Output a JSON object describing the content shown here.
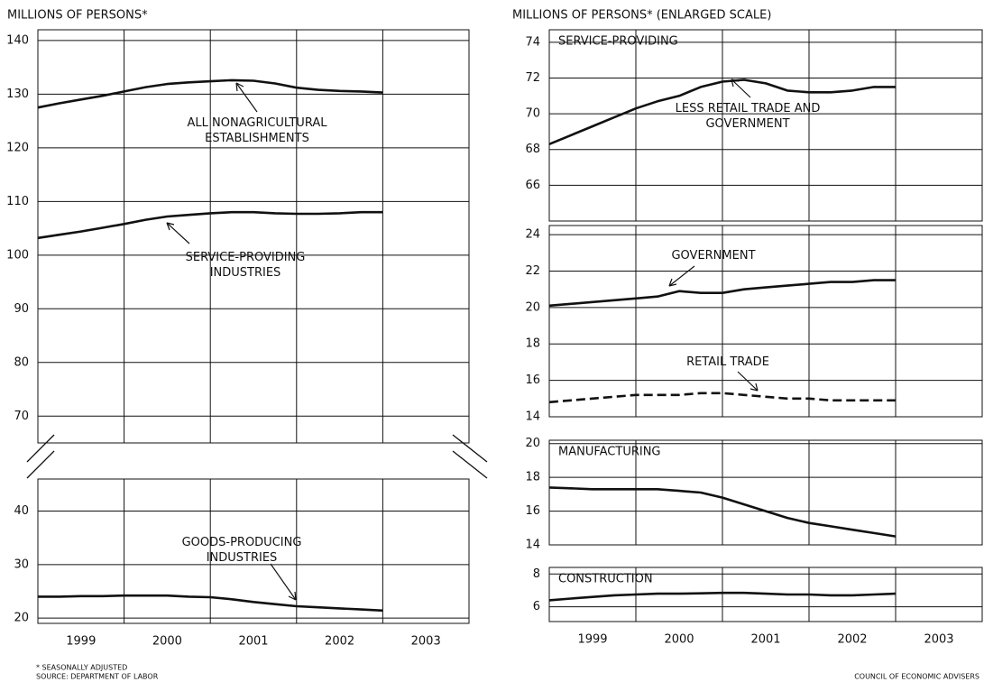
{
  "headers": [
    "MILLIONS OF PERSONS*",
    "MILLIONS OF PERSONS*  (ENLARGED SCALE)"
  ],
  "notes": [
    "* SEASONALLY ADJUSTED",
    "SOURCE: DEPARTMENT OF LABOR",
    "COUNCIL OF ECONOMIC ADVISERS"
  ],
  "chart_data": [
    {
      "type": "line",
      "xlim": [
        1999,
        2004
      ],
      "xticks": [
        2000,
        2001,
        2002,
        2003
      ],
      "ylim": [
        65,
        142
      ],
      "yticks": [
        70,
        80,
        90,
        100,
        110,
        120,
        130,
        140
      ],
      "grid": true,
      "x": [
        1999,
        1999.25,
        1999.5,
        1999.75,
        2000,
        2000.25,
        2000.5,
        2000.75,
        2001,
        2001.25,
        2001.5,
        2001.75,
        2002,
        2002.25,
        2002.5,
        2002.75,
        2003
      ],
      "series": [
        {
          "name": "ALL NONAGRICULTURAL ESTABLISHMENTS",
          "color": "#111111",
          "values": [
            127.5,
            128.3,
            129.0,
            129.7,
            130.5,
            131.3,
            131.9,
            132.2,
            132.4,
            132.6,
            132.5,
            132.0,
            131.2,
            130.8,
            130.6,
            130.5,
            130.3
          ]
        },
        {
          "name": "SERVICE-PROVIDING INDUSTRIES",
          "color": "#111111",
          "values": [
            103.2,
            103.8,
            104.4,
            105.1,
            105.8,
            106.6,
            107.2,
            107.5,
            107.8,
            108.0,
            108.0,
            107.8,
            107.7,
            107.7,
            107.8,
            108.0,
            108.0
          ]
        }
      ]
    },
    {
      "type": "line",
      "xlim": [
        1999,
        2004
      ],
      "xticks": [
        2000,
        2001,
        2002,
        2003
      ],
      "ylim": [
        19,
        46
      ],
      "yticks": [
        20,
        30,
        40
      ],
      "grid": true,
      "categories": [
        "1999",
        "2000",
        "2001",
        "2002",
        "2003"
      ],
      "x": [
        1999,
        1999.25,
        1999.5,
        1999.75,
        2000,
        2000.25,
        2000.5,
        2000.75,
        2001,
        2001.25,
        2001.5,
        2001.75,
        2002,
        2002.25,
        2002.5,
        2002.75,
        2003
      ],
      "series": [
        {
          "name": "GOODS-PRODUCING INDUSTRIES",
          "color": "#111111",
          "values": [
            24.0,
            24.0,
            24.1,
            24.1,
            24.2,
            24.2,
            24.2,
            24.0,
            23.9,
            23.5,
            23.0,
            22.6,
            22.2,
            22.0,
            21.8,
            21.6,
            21.4
          ]
        }
      ]
    },
    {
      "type": "line",
      "title": "SERVICE-PROVIDING",
      "xlim": [
        1999,
        2004
      ],
      "xticks": [
        2000,
        2001,
        2002,
        2003
      ],
      "ylim": [
        64,
        74.7
      ],
      "yticks": [
        66,
        68,
        70,
        72,
        74
      ],
      "grid": true,
      "x": [
        1999,
        1999.25,
        1999.5,
        1999.75,
        2000,
        2000.25,
        2000.5,
        2000.75,
        2001,
        2001.25,
        2001.5,
        2001.75,
        2002,
        2002.25,
        2002.5,
        2002.75,
        2003
      ],
      "series": [
        {
          "name": "LESS RETAIL TRADE AND GOVERNMENT",
          "color": "#111111",
          "values": [
            68.3,
            68.8,
            69.3,
            69.8,
            70.3,
            70.7,
            71.0,
            71.5,
            71.8,
            71.9,
            71.7,
            71.3,
            71.2,
            71.2,
            71.3,
            71.5,
            71.5
          ]
        }
      ]
    },
    {
      "type": "line",
      "xlim": [
        1999,
        2004
      ],
      "xticks": [
        2000,
        2001,
        2002,
        2003
      ],
      "ylim": [
        14,
        24.5
      ],
      "yticks": [
        14,
        16,
        18,
        20,
        22,
        24
      ],
      "grid": true,
      "x": [
        1999,
        1999.25,
        1999.5,
        1999.75,
        2000,
        2000.25,
        2000.5,
        2000.75,
        2001,
        2001.25,
        2001.5,
        2001.75,
        2002,
        2002.25,
        2002.5,
        2002.75,
        2003
      ],
      "series": [
        {
          "name": "GOVERNMENT",
          "color": "#111111",
          "values": [
            20.1,
            20.2,
            20.3,
            20.4,
            20.5,
            20.6,
            20.9,
            20.8,
            20.8,
            21.0,
            21.1,
            21.2,
            21.3,
            21.4,
            21.4,
            21.5,
            21.5
          ]
        },
        {
          "name": "RETAIL TRADE",
          "color": "#111111",
          "dashed": true,
          "values": [
            14.8,
            14.9,
            15.0,
            15.1,
            15.2,
            15.2,
            15.2,
            15.3,
            15.3,
            15.2,
            15.1,
            15.0,
            15.0,
            14.9,
            14.9,
            14.9,
            14.9
          ]
        }
      ]
    },
    {
      "type": "line",
      "title": "MANUFACTURING",
      "xlim": [
        1999,
        2004
      ],
      "xticks": [
        2000,
        2001,
        2002,
        2003
      ],
      "ylim": [
        14,
        20.2
      ],
      "yticks": [
        14,
        16,
        18,
        20
      ],
      "grid": true,
      "x": [
        1999,
        1999.25,
        1999.5,
        1999.75,
        2000,
        2000.25,
        2000.5,
        2000.75,
        2001,
        2001.25,
        2001.5,
        2001.75,
        2002,
        2002.25,
        2002.5,
        2002.75,
        2003
      ],
      "series": [
        {
          "color": "#111111",
          "values": [
            17.4,
            17.35,
            17.3,
            17.3,
            17.3,
            17.3,
            17.2,
            17.1,
            16.8,
            16.4,
            16.0,
            15.6,
            15.3,
            15.1,
            14.9,
            14.7,
            14.5
          ]
        }
      ]
    },
    {
      "type": "line",
      "title": "CONSTRUCTION",
      "xlim": [
        1999,
        2004
      ],
      "xticks": [
        2000,
        2001,
        2002,
        2003
      ],
      "ylim": [
        5.1,
        8.4
      ],
      "yticks": [
        6,
        8
      ],
      "grid": true,
      "categories": [
        "1999",
        "2000",
        "2001",
        "2002",
        "2003"
      ],
      "x": [
        1999,
        1999.25,
        1999.5,
        1999.75,
        2000,
        2000.25,
        2000.5,
        2000.75,
        2001,
        2001.25,
        2001.5,
        2001.75,
        2002,
        2002.25,
        2002.5,
        2002.75,
        2003
      ],
      "series": [
        {
          "color": "#111111",
          "values": [
            6.4,
            6.5,
            6.6,
            6.7,
            6.75,
            6.8,
            6.8,
            6.82,
            6.85,
            6.85,
            6.8,
            6.75,
            6.75,
            6.7,
            6.7,
            6.75,
            6.8
          ]
        }
      ]
    }
  ]
}
